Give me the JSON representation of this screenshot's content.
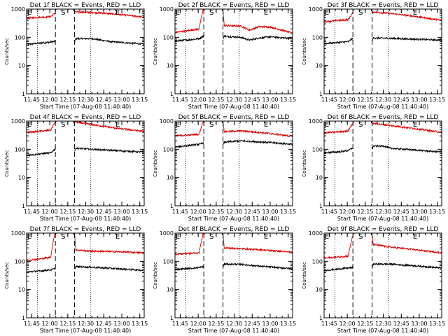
{
  "ylabel": "Counts/sec",
  "xlabel": "Start Time (07-Aug-08 11:40:40)",
  "xticks": [
    "11:45",
    "12:00",
    "12:15",
    "12:30",
    "12:45",
    "13:00",
    "13:15"
  ],
  "yticks": [
    "1000",
    "100",
    "10",
    "1"
  ],
  "colors": {
    "events": "#000000",
    "lld": "#dd0000",
    "axes": "#000000"
  },
  "chart_data": [
    {
      "type": "line",
      "title": "Det 1f BLACK = Events, RED = LLD",
      "x_unit": "minutes after 11:40:40",
      "xlim": [
        0,
        98
      ],
      "ylim": [
        1,
        1000
      ],
      "yscale": "log",
      "markers": {
        "E_start": 0.5,
        "S": 31,
        "E_end": 74
      },
      "dotted_lines": [
        9,
        53.5
      ],
      "dashed_lines": [
        24,
        40
      ],
      "series": [
        {
          "name": "Events",
          "gaps": [
            [
              24,
              40
            ]
          ],
          "values": [
            [
              0,
              56
            ],
            [
              10,
              62
            ],
            [
              20,
              68
            ],
            [
              23.5,
              72
            ],
            [
              40,
              65
            ],
            [
              41,
              90
            ],
            [
              55,
              90
            ],
            [
              70,
              70
            ],
            [
              98,
              58
            ]
          ]
        },
        {
          "name": "LLD",
          "gaps": [
            [
              24,
              40
            ]
          ],
          "values": [
            [
              0,
              480
            ],
            [
              10,
              510
            ],
            [
              20,
              540
            ],
            [
              23.5,
              700
            ],
            [
              40,
              800
            ],
            [
              55,
              760
            ],
            [
              75,
              660
            ],
            [
              98,
              520
            ]
          ]
        }
      ]
    },
    {
      "type": "line",
      "title": "Det 2f BLACK = Events, RED = LLD",
      "x_unit": "minutes after 11:40:40",
      "xlim": [
        0,
        98
      ],
      "ylim": [
        1,
        1000
      ],
      "yscale": "log",
      "markers": {
        "E_start": 0.5,
        "S": 31,
        "E_end": 74
      },
      "dotted_lines": [
        9,
        53.5
      ],
      "dashed_lines": [
        24,
        40
      ],
      "series": [
        {
          "name": "Events",
          "gaps": [
            [
              24,
              40
            ]
          ],
          "values": [
            [
              0,
              75
            ],
            [
              10,
              80
            ],
            [
              20,
              90
            ],
            [
              23.5,
              110
            ],
            [
              40,
              90
            ],
            [
              41,
              110
            ],
            [
              55,
              100
            ],
            [
              62,
              80
            ],
            [
              70,
              95
            ],
            [
              80,
              105
            ],
            [
              98,
              90
            ]
          ]
        },
        {
          "name": "LLD",
          "gaps": [
            [
              24,
              40
            ]
          ],
          "values": [
            [
              0,
              150
            ],
            [
              10,
              170
            ],
            [
              20,
              200
            ],
            [
              23.5,
              1000
            ],
            [
              40,
              1000
            ],
            [
              41,
              260
            ],
            [
              55,
              250
            ],
            [
              62,
              180
            ],
            [
              70,
              240
            ],
            [
              80,
              230
            ],
            [
              98,
              140
            ]
          ]
        }
      ]
    },
    {
      "type": "line",
      "title": "Det 3f BLACK = Events, RED = LLD",
      "x_unit": "minutes after 11:40:40",
      "xlim": [
        0,
        98
      ],
      "ylim": [
        1,
        1000
      ],
      "yscale": "log",
      "markers": {
        "E_start": 0.5,
        "S": 31,
        "E_end": 74
      },
      "dotted_lines": [
        9,
        53.5
      ],
      "dashed_lines": [
        24,
        40
      ],
      "series": [
        {
          "name": "Events",
          "gaps": [
            [
              24,
              40
            ]
          ],
          "values": [
            [
              0,
              60
            ],
            [
              10,
              65
            ],
            [
              20,
              70
            ],
            [
              23.5,
              90
            ],
            [
              40,
              80
            ],
            [
              41,
              95
            ],
            [
              55,
              92
            ],
            [
              70,
              88
            ],
            [
              98,
              80
            ]
          ]
        },
        {
          "name": "LLD",
          "gaps": [
            [
              24,
              40
            ]
          ],
          "values": [
            [
              0,
              360
            ],
            [
              10,
              390
            ],
            [
              20,
              420
            ],
            [
              23.5,
              700
            ],
            [
              40,
              800
            ],
            [
              55,
              700
            ],
            [
              75,
              560
            ],
            [
              98,
              400
            ]
          ]
        }
      ]
    },
    {
      "type": "line",
      "title": "Det 4f BLACK = Events, RED = LLD",
      "x_unit": "minutes after 11:40:40",
      "xlim": [
        0,
        98
      ],
      "ylim": [
        1,
        1000
      ],
      "yscale": "log",
      "markers": {
        "E_start": 0.5,
        "S": 31,
        "E_end": 74
      },
      "dotted_lines": [
        9,
        53.5
      ],
      "dashed_lines": [
        24,
        40
      ],
      "series": [
        {
          "name": "Events",
          "gaps": [
            [
              24,
              40
            ]
          ],
          "values": [
            [
              0,
              62
            ],
            [
              10,
              68
            ],
            [
              20,
              75
            ],
            [
              23.5,
              100
            ],
            [
              40,
              85
            ],
            [
              41,
              110
            ],
            [
              55,
              100
            ],
            [
              75,
              90
            ],
            [
              98,
              80
            ]
          ]
        },
        {
          "name": "LLD",
          "gaps": [
            [
              24,
              40
            ]
          ],
          "values": [
            [
              0,
              400
            ],
            [
              10,
              430
            ],
            [
              20,
              480
            ],
            [
              23.5,
              900
            ],
            [
              40,
              950
            ],
            [
              55,
              750
            ],
            [
              75,
              560
            ],
            [
              98,
              430
            ]
          ]
        }
      ]
    },
    {
      "type": "line",
      "title": "Det 5f BLACK = Events, RED = LLD",
      "x_unit": "minutes after 11:40:40",
      "xlim": [
        0,
        98
      ],
      "ylim": [
        1,
        1000
      ],
      "yscale": "log",
      "markers": {
        "E_start": 0.5,
        "S": 31,
        "E_end": 74
      },
      "dotted_lines": [
        9,
        53.5
      ],
      "dashed_lines": [
        24,
        40
      ],
      "series": [
        {
          "name": "Events",
          "gaps": [
            [
              24,
              40
            ]
          ],
          "values": [
            [
              0,
              120
            ],
            [
              10,
              135
            ],
            [
              20,
              150
            ],
            [
              23.5,
              170
            ],
            [
              40,
              140
            ],
            [
              41,
              180
            ],
            [
              55,
              200
            ],
            [
              75,
              180
            ],
            [
              98,
              150
            ]
          ]
        },
        {
          "name": "LLD",
          "gaps": [
            [
              24,
              40
            ]
          ],
          "values": [
            [
              0,
              300
            ],
            [
              10,
              320
            ],
            [
              20,
              340
            ],
            [
              23.5,
              1000
            ],
            [
              40,
              1000
            ],
            [
              41,
              420
            ],
            [
              55,
              450
            ],
            [
              75,
              380
            ],
            [
              98,
              290
            ]
          ]
        }
      ]
    },
    {
      "type": "line",
      "title": "Det 6f BLACK = Events, RED = LLD",
      "x_unit": "minutes after 11:40:40",
      "xlim": [
        0,
        98
      ],
      "ylim": [
        1,
        1000
      ],
      "yscale": "log",
      "markers": {
        "E_start": 0.5,
        "S": 31,
        "E_end": 74
      },
      "dotted_lines": [
        9,
        53.5
      ],
      "dashed_lines": [
        24,
        40
      ],
      "series": [
        {
          "name": "Events",
          "gaps": [
            [
              24,
              40
            ]
          ],
          "values": [
            [
              0,
              75
            ],
            [
              10,
              80
            ],
            [
              20,
              90
            ],
            [
              23.5,
              110
            ],
            [
              40,
              100
            ],
            [
              41,
              130
            ],
            [
              50,
              130
            ],
            [
              55,
              110
            ],
            [
              75,
              95
            ],
            [
              98,
              80
            ]
          ]
        },
        {
          "name": "LLD",
          "gaps": [
            [
              24,
              40
            ]
          ],
          "values": [
            [
              0,
              380
            ],
            [
              10,
              410
            ],
            [
              20,
              450
            ],
            [
              23.5,
              800
            ],
            [
              40,
              850
            ],
            [
              55,
              700
            ],
            [
              75,
              550
            ],
            [
              98,
              400
            ]
          ]
        }
      ]
    },
    {
      "type": "line",
      "title": "Det 7f BLACK = Events, RED = LLD",
      "x_unit": "minutes after 11:40:40",
      "xlim": [
        0,
        98
      ],
      "ylim": [
        1,
        1000
      ],
      "yscale": "log",
      "markers": {
        "E_start": 0.5,
        "S": 31,
        "E_end": 74
      },
      "dotted_lines": [
        9,
        53.5
      ],
      "dashed_lines": [
        24,
        40
      ],
      "series": [
        {
          "name": "Events",
          "gaps": [
            [
              24,
              40
            ]
          ],
          "values": [
            [
              0,
              42
            ],
            [
              10,
              45
            ],
            [
              20,
              50
            ],
            [
              23.5,
              55
            ],
            [
              40,
              55
            ],
            [
              41,
              65
            ],
            [
              55,
              62
            ],
            [
              75,
              55
            ],
            [
              98,
              48
            ]
          ]
        },
        {
          "name": "LLD",
          "gaps": [
            [
              24,
              40
            ]
          ],
          "values": [
            [
              0,
              110
            ],
            [
              10,
              120
            ],
            [
              20,
              140
            ],
            [
              23.5,
              1000
            ],
            [
              40,
              1000
            ],
            [
              41,
              250
            ],
            [
              55,
              230
            ],
            [
              75,
              220
            ],
            [
              98,
              200
            ]
          ]
        }
      ]
    },
    {
      "type": "line",
      "title": "Det 8f BLACK = Events, RED = LLD",
      "x_unit": "minutes after 11:40:40",
      "xlim": [
        0,
        98
      ],
      "ylim": [
        1,
        1000
      ],
      "yscale": "log",
      "markers": {
        "E_start": 0.5,
        "S": 31,
        "E_end": 74
      },
      "dotted_lines": [
        9,
        53.5
      ],
      "dashed_lines": [
        24,
        40
      ],
      "series": [
        {
          "name": "Events",
          "gaps": [
            [
              24,
              40
            ]
          ],
          "values": [
            [
              0,
              52
            ],
            [
              10,
              55
            ],
            [
              20,
              60
            ],
            [
              23.5,
              65
            ],
            [
              40,
              62
            ],
            [
              41,
              80
            ],
            [
              55,
              78
            ],
            [
              75,
              65
            ],
            [
              98,
              55
            ]
          ]
        },
        {
          "name": "LLD",
          "gaps": [
            [
              24,
              40
            ]
          ],
          "values": [
            [
              0,
              180
            ],
            [
              10,
              190
            ],
            [
              20,
              200
            ],
            [
              23.5,
              1000
            ],
            [
              40,
              1000
            ],
            [
              41,
              300
            ],
            [
              55,
              280
            ],
            [
              75,
              250
            ],
            [
              98,
              210
            ]
          ]
        }
      ]
    },
    {
      "type": "line",
      "title": "Det 9f BLACK = Events, RED = LLD",
      "x_unit": "minutes after 11:40:40",
      "xlim": [
        0,
        98
      ],
      "ylim": [
        1,
        1000
      ],
      "yscale": "log",
      "markers": {
        "E_start": 0.5,
        "S": 31,
        "E_end": 74
      },
      "dotted_lines": [
        9,
        53.5
      ],
      "dashed_lines": [
        24,
        40
      ],
      "series": [
        {
          "name": "Events",
          "gaps": [
            [
              24,
              40
            ]
          ],
          "values": [
            [
              0,
              48
            ],
            [
              10,
              52
            ],
            [
              20,
              58
            ],
            [
              23.5,
              60
            ],
            [
              40,
              62
            ],
            [
              41,
              80
            ],
            [
              55,
              80
            ],
            [
              75,
              70
            ],
            [
              98,
              58
            ]
          ]
        },
        {
          "name": "LLD",
          "gaps": [
            [
              24,
              40
            ]
          ],
          "values": [
            [
              0,
              130
            ],
            [
              10,
              140
            ],
            [
              20,
              155
            ],
            [
              23.5,
              700
            ],
            [
              40,
              800
            ],
            [
              41,
              400
            ],
            [
              55,
              320
            ],
            [
              75,
              260
            ],
            [
              98,
              200
            ]
          ]
        }
      ]
    }
  ]
}
